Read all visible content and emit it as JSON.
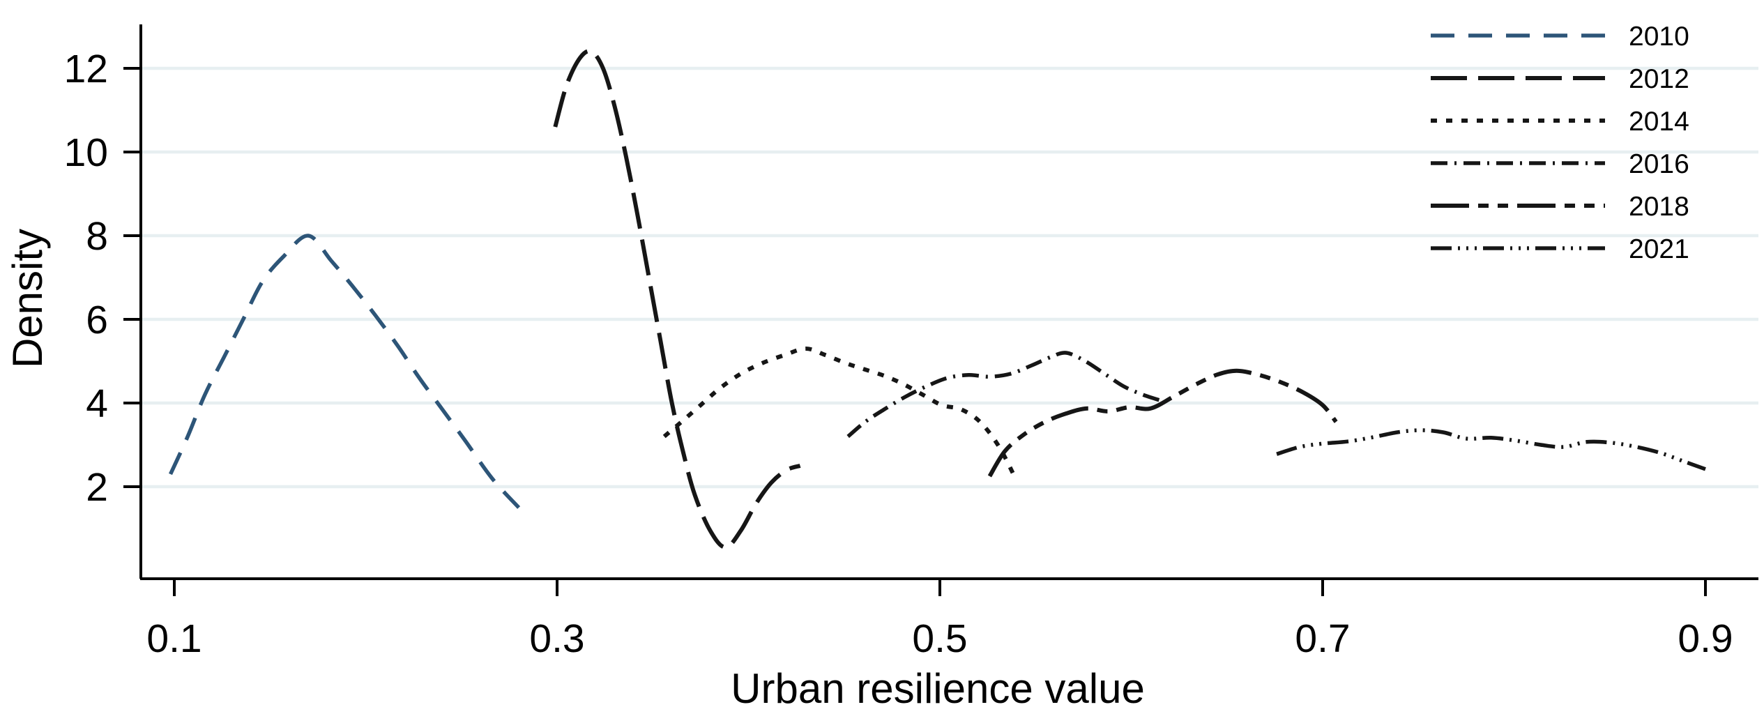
{
  "figure": {
    "background": "#ffffff",
    "axis_color": "#000000",
    "grid_color": "#e7eff1",
    "series_default_color": "#161616",
    "accent_blue": "#2d5578"
  },
  "chart_data": {
    "type": "line",
    "subtype": "kernel-density",
    "title": "",
    "xlabel": "Urban resilience value",
    "ylabel": "Density",
    "xlim": [
      0.08,
      0.93
    ],
    "ylim": [
      0,
      13.1
    ],
    "grid": true,
    "legend_position": "top-right",
    "x_ticks": [
      "0.1",
      "0.3",
      "0.5",
      "0.7",
      "0.9"
    ],
    "x_tick_values": [
      0.1,
      0.3,
      0.5,
      0.7,
      0.9
    ],
    "y_ticks": [
      "2",
      "4",
      "6",
      "8",
      "10",
      "12"
    ],
    "y_tick_values": [
      2,
      4,
      6,
      8,
      10,
      12
    ],
    "series": [
      {
        "name": "2010",
        "color": "#2d5578",
        "dash": "34 20",
        "width": 5.5,
        "points": [
          [
            0.098,
            2.3
          ],
          [
            0.107,
            3.2
          ],
          [
            0.116,
            4.2
          ],
          [
            0.126,
            5.1
          ],
          [
            0.136,
            6.0
          ],
          [
            0.146,
            6.9
          ],
          [
            0.157,
            7.5
          ],
          [
            0.17,
            8.0
          ],
          [
            0.182,
            7.4
          ],
          [
            0.193,
            6.8
          ],
          [
            0.205,
            6.1
          ],
          [
            0.217,
            5.35
          ],
          [
            0.228,
            4.6
          ],
          [
            0.24,
            3.85
          ],
          [
            0.252,
            3.1
          ],
          [
            0.266,
            2.2
          ],
          [
            0.28,
            1.5
          ]
        ]
      },
      {
        "name": "2012",
        "color": "#161616",
        "dash": "52 16",
        "width": 6,
        "points": [
          [
            0.299,
            10.6
          ],
          [
            0.305,
            11.6
          ],
          [
            0.312,
            12.25
          ],
          [
            0.318,
            12.4
          ],
          [
            0.324,
            12.0
          ],
          [
            0.33,
            11.1
          ],
          [
            0.336,
            9.9
          ],
          [
            0.342,
            8.5
          ],
          [
            0.348,
            7.0
          ],
          [
            0.354,
            5.5
          ],
          [
            0.36,
            4.0
          ],
          [
            0.366,
            2.8
          ],
          [
            0.372,
            1.8
          ],
          [
            0.38,
            0.95
          ],
          [
            0.388,
            0.55
          ],
          [
            0.396,
            0.95
          ],
          [
            0.404,
            1.6
          ],
          [
            0.412,
            2.1
          ],
          [
            0.42,
            2.4
          ],
          [
            0.427,
            2.5
          ]
        ]
      },
      {
        "name": "2014",
        "color": "#161616",
        "dash": "9 13",
        "width": 6,
        "points": [
          [
            0.356,
            3.2
          ],
          [
            0.365,
            3.55
          ],
          [
            0.375,
            3.95
          ],
          [
            0.385,
            4.35
          ],
          [
            0.396,
            4.7
          ],
          [
            0.407,
            4.95
          ],
          [
            0.419,
            5.15
          ],
          [
            0.43,
            5.3
          ],
          [
            0.44,
            5.15
          ],
          [
            0.451,
            4.95
          ],
          [
            0.461,
            4.8
          ],
          [
            0.471,
            4.65
          ],
          [
            0.481,
            4.45
          ],
          [
            0.491,
            4.2
          ],
          [
            0.501,
            3.95
          ],
          [
            0.511,
            3.85
          ],
          [
            0.521,
            3.55
          ],
          [
            0.531,
            2.95
          ],
          [
            0.54,
            2.15
          ]
        ]
      },
      {
        "name": "2016",
        "color": "#161616",
        "dash": "24 10 3 10",
        "width": 5.5,
        "points": [
          [
            0.452,
            3.2
          ],
          [
            0.461,
            3.55
          ],
          [
            0.471,
            3.85
          ],
          [
            0.482,
            4.15
          ],
          [
            0.493,
            4.4
          ],
          [
            0.504,
            4.6
          ],
          [
            0.515,
            4.67
          ],
          [
            0.526,
            4.63
          ],
          [
            0.537,
            4.7
          ],
          [
            0.548,
            4.9
          ],
          [
            0.558,
            5.1
          ],
          [
            0.566,
            5.2
          ],
          [
            0.576,
            5.0
          ],
          [
            0.586,
            4.7
          ],
          [
            0.596,
            4.4
          ],
          [
            0.606,
            4.2
          ],
          [
            0.616,
            4.05
          ]
        ]
      },
      {
        "name": "2018",
        "color": "#161616",
        "dash": "55 13 15 13 15 13",
        "width": 6,
        "points": [
          [
            0.526,
            2.25
          ],
          [
            0.534,
            2.85
          ],
          [
            0.544,
            3.25
          ],
          [
            0.555,
            3.55
          ],
          [
            0.566,
            3.75
          ],
          [
            0.577,
            3.87
          ],
          [
            0.588,
            3.8
          ],
          [
            0.599,
            3.9
          ],
          [
            0.61,
            3.87
          ],
          [
            0.622,
            4.15
          ],
          [
            0.634,
            4.45
          ],
          [
            0.645,
            4.68
          ],
          [
            0.655,
            4.77
          ],
          [
            0.666,
            4.68
          ],
          [
            0.678,
            4.5
          ],
          [
            0.69,
            4.25
          ],
          [
            0.7,
            3.95
          ],
          [
            0.707,
            3.55
          ]
        ]
      },
      {
        "name": "2021",
        "color": "#161616",
        "dash": "30 9 3 9 3 9 3 9",
        "width": 5.5,
        "points": [
          [
            0.676,
            2.78
          ],
          [
            0.688,
            2.95
          ],
          [
            0.7,
            3.03
          ],
          [
            0.713,
            3.08
          ],
          [
            0.726,
            3.18
          ],
          [
            0.739,
            3.3
          ],
          [
            0.751,
            3.35
          ],
          [
            0.763,
            3.3
          ],
          [
            0.775,
            3.15
          ],
          [
            0.788,
            3.17
          ],
          [
            0.801,
            3.1
          ],
          [
            0.814,
            3.0
          ],
          [
            0.826,
            2.95
          ],
          [
            0.838,
            3.07
          ],
          [
            0.851,
            3.05
          ],
          [
            0.864,
            2.95
          ],
          [
            0.877,
            2.8
          ],
          [
            0.889,
            2.6
          ],
          [
            0.9,
            2.42
          ]
        ]
      }
    ]
  }
}
